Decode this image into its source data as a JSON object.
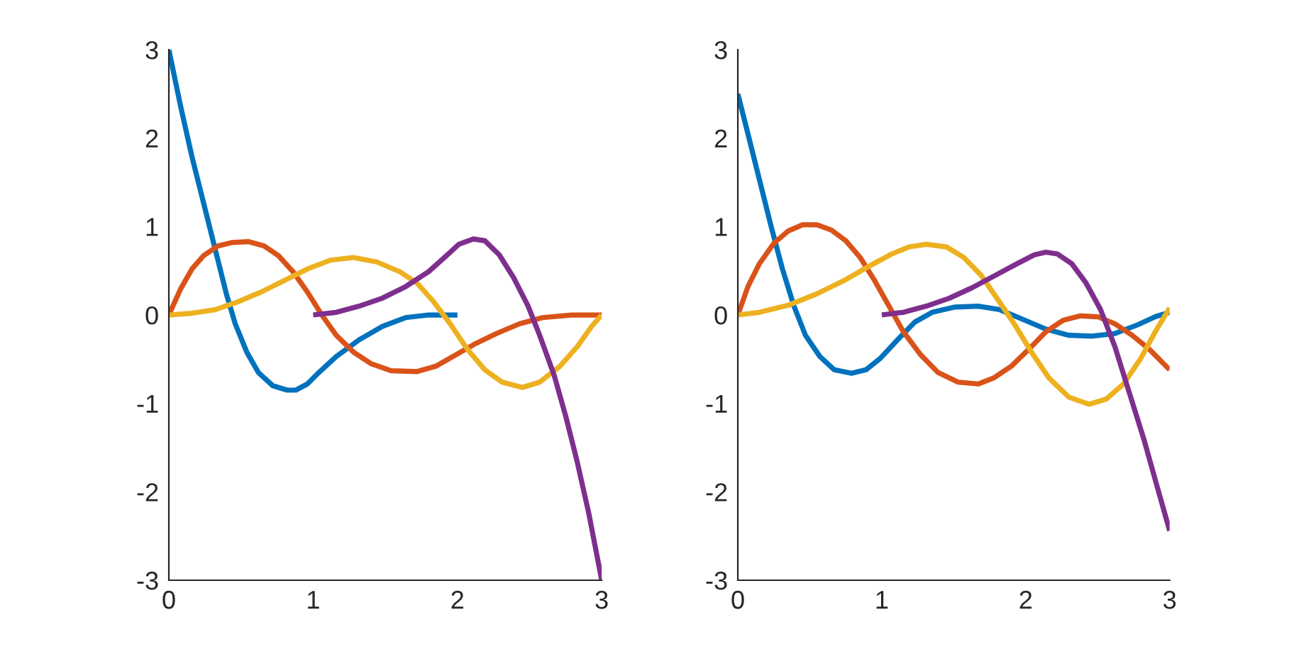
{
  "chart_data": [
    {
      "type": "line",
      "xlim": [
        0,
        3
      ],
      "ylim": [
        -3,
        3
      ],
      "xticks": [
        0,
        1,
        2,
        3
      ],
      "yticks": [
        -3,
        -2,
        -1,
        0,
        1,
        2,
        3
      ],
      "series": [
        {
          "color": "#0072bd",
          "x": [
            0,
            0.08,
            0.16,
            0.24,
            0.32,
            0.4,
            0.46,
            0.54,
            0.62,
            0.72,
            0.82,
            0.88,
            0.96,
            1.04,
            1.16,
            1.32,
            1.48,
            1.64,
            1.8,
            2.0
          ],
          "values": [
            3,
            2.37,
            1.79,
            1.27,
            0.75,
            0.23,
            -0.1,
            -0.42,
            -0.65,
            -0.8,
            -0.85,
            -0.85,
            -0.78,
            -0.65,
            -0.47,
            -0.28,
            -0.13,
            -0.03,
            0,
            0
          ]
        },
        {
          "color": "#d95319",
          "x": [
            0,
            0.08,
            0.16,
            0.24,
            0.34,
            0.44,
            0.55,
            0.66,
            0.76,
            0.86,
            0.96,
            1.06,
            1.16,
            1.28,
            1.4,
            1.54,
            1.72,
            1.85,
            1.99,
            2.13,
            2.27,
            2.43,
            2.59,
            2.79,
            3.0
          ],
          "values": [
            0,
            0.29,
            0.52,
            0.67,
            0.78,
            0.82,
            0.83,
            0.78,
            0.67,
            0.49,
            0.26,
            0,
            -0.23,
            -0.42,
            -0.55,
            -0.63,
            -0.64,
            -0.58,
            -0.45,
            -0.32,
            -0.21,
            -0.1,
            -0.03,
            0,
            0
          ]
        },
        {
          "color": "#edb120",
          "x": [
            0,
            0.16,
            0.32,
            0.48,
            0.64,
            0.8,
            0.96,
            1.12,
            1.28,
            1.44,
            1.6,
            1.72,
            1.83,
            1.95,
            2.07,
            2.19,
            2.31,
            2.45,
            2.57,
            2.71,
            2.83,
            2.93,
            3.0
          ],
          "values": [
            0,
            0.02,
            0.06,
            0.15,
            0.26,
            0.39,
            0.52,
            0.62,
            0.65,
            0.6,
            0.49,
            0.36,
            0.16,
            -0.1,
            -0.39,
            -0.62,
            -0.76,
            -0.82,
            -0.76,
            -0.58,
            -0.36,
            -0.13,
            0
          ]
        },
        {
          "color": "#7e2f8e",
          "x": [
            1.0,
            1.16,
            1.32,
            1.48,
            1.64,
            1.8,
            1.91,
            2.01,
            2.11,
            2.19,
            2.29,
            2.39,
            2.49,
            2.57,
            2.67,
            2.75,
            2.83,
            2.91,
            3.0
          ],
          "values": [
            0,
            0.03,
            0.1,
            0.19,
            0.32,
            0.49,
            0.65,
            0.8,
            0.86,
            0.84,
            0.68,
            0.42,
            0.1,
            -0.23,
            -0.68,
            -1.14,
            -1.66,
            -2.24,
            -3.0
          ]
        }
      ]
    },
    {
      "type": "line",
      "xlim": [
        0,
        3
      ],
      "ylim": [
        -3,
        3
      ],
      "xticks": [
        0,
        1,
        2,
        3
      ],
      "yticks": [
        -3,
        -2,
        -1,
        0,
        1,
        2,
        3
      ],
      "series": [
        {
          "color": "#0072bd",
          "x": [
            0,
            0.07,
            0.15,
            0.23,
            0.31,
            0.39,
            0.47,
            0.57,
            0.67,
            0.79,
            0.89,
            0.99,
            1.11,
            1.23,
            1.35,
            1.51,
            1.67,
            1.82,
            1.98,
            2.14,
            2.3,
            2.46,
            2.62,
            2.78,
            2.9,
            3.0
          ],
          "values": [
            2.5,
            2.05,
            1.53,
            1.01,
            0.52,
            0.1,
            -0.23,
            -0.47,
            -0.62,
            -0.66,
            -0.62,
            -0.49,
            -0.28,
            -0.08,
            0.03,
            0.09,
            0.1,
            0.06,
            -0.05,
            -0.16,
            -0.23,
            -0.24,
            -0.21,
            -0.11,
            -0.02,
            0.03
          ]
        },
        {
          "color": "#d95319",
          "x": [
            0,
            0.07,
            0.15,
            0.25,
            0.35,
            0.45,
            0.55,
            0.65,
            0.75,
            0.85,
            0.95,
            1.05,
            1.15,
            1.27,
            1.39,
            1.53,
            1.67,
            1.78,
            1.9,
            2.02,
            2.14,
            2.26,
            2.38,
            2.5,
            2.62,
            2.74,
            2.86,
            3.0
          ],
          "values": [
            0,
            0.32,
            0.58,
            0.81,
            0.95,
            1.02,
            1.02,
            0.96,
            0.84,
            0.65,
            0.39,
            0.1,
            -0.19,
            -0.45,
            -0.65,
            -0.76,
            -0.78,
            -0.71,
            -0.58,
            -0.39,
            -0.19,
            -0.06,
            -0.01,
            -0.02,
            -0.1,
            -0.23,
            -0.39,
            -0.62
          ]
        },
        {
          "color": "#edb120",
          "x": [
            0,
            0.15,
            0.35,
            0.55,
            0.75,
            0.91,
            1.07,
            1.19,
            1.31,
            1.45,
            1.57,
            1.69,
            1.8,
            1.92,
            2.04,
            2.16,
            2.3,
            2.44,
            2.56,
            2.68,
            2.8,
            2.9,
            3.0
          ],
          "values": [
            0,
            0.03,
            0.11,
            0.24,
            0.4,
            0.55,
            0.69,
            0.77,
            0.8,
            0.77,
            0.65,
            0.45,
            0.19,
            -0.1,
            -0.42,
            -0.71,
            -0.93,
            -1.01,
            -0.95,
            -0.78,
            -0.49,
            -0.19,
            0.08
          ]
        },
        {
          "color": "#7e2f8e",
          "x": [
            1.0,
            1.15,
            1.31,
            1.47,
            1.63,
            1.78,
            1.94,
            2.06,
            2.14,
            2.22,
            2.32,
            2.42,
            2.52,
            2.62,
            2.72,
            2.82,
            2.92,
            3.0
          ],
          "values": [
            0,
            0.03,
            0.1,
            0.19,
            0.31,
            0.44,
            0.58,
            0.68,
            0.71,
            0.69,
            0.58,
            0.36,
            0.06,
            -0.36,
            -0.88,
            -1.4,
            -1.98,
            -2.44
          ]
        }
      ]
    }
  ]
}
